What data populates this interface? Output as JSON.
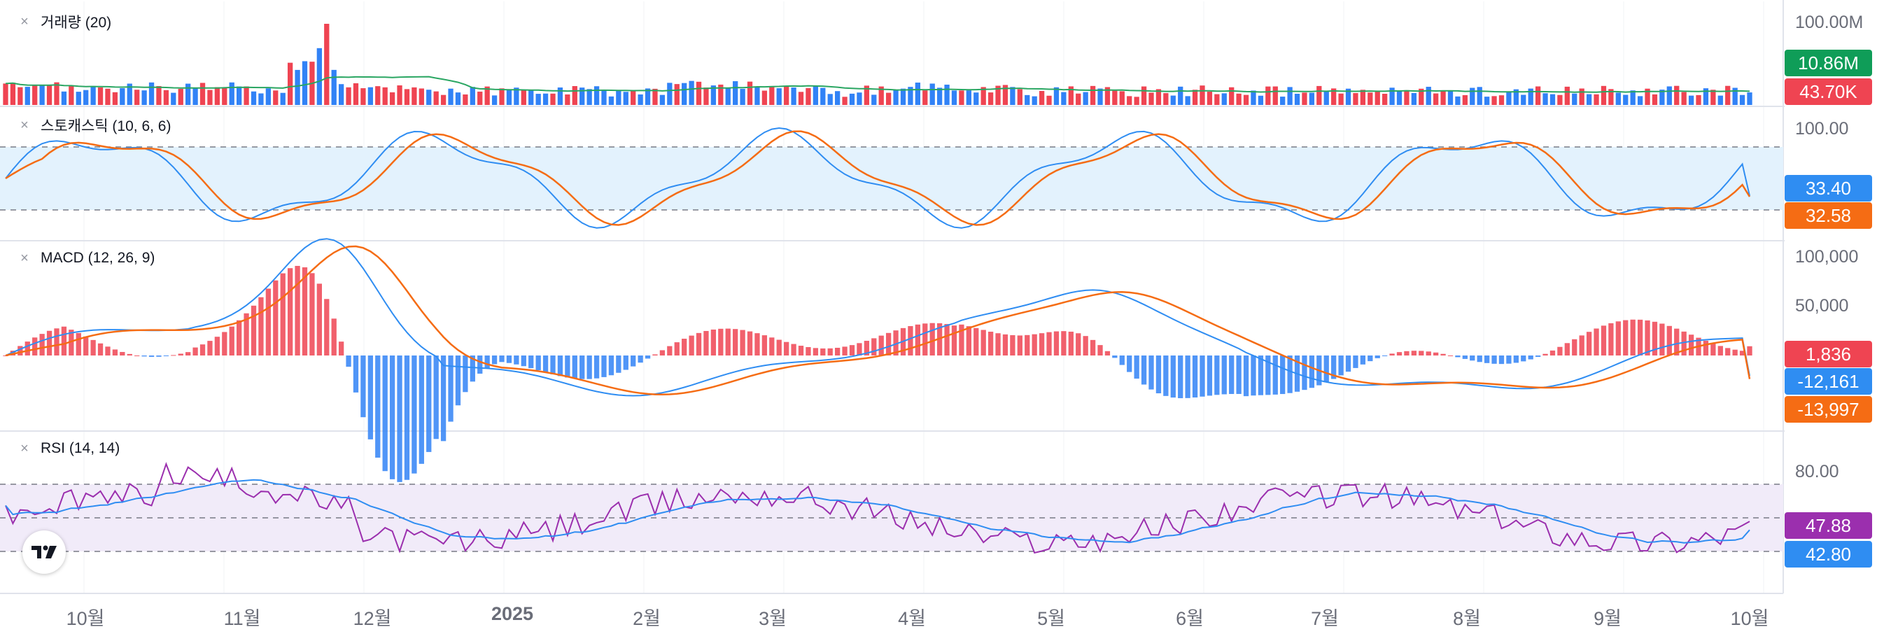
{
  "chart_data": [
    {
      "type": "bar",
      "title": "거래량 (20)",
      "series": [
        {
          "values": []
        },
        {
          "name": "MA",
          "values": []
        }
      ],
      "axis": {
        "max_label": "100.00M"
      },
      "last_values": {
        "ma": "10.86M",
        "volume": "43.70K"
      },
      "colors": {
        "up": "#ef4452",
        "down": "#3182f6",
        "ma": "#2aa662"
      }
    },
    {
      "type": "line",
      "title": "스토캐스틱 (10, 6, 6)",
      "series": [
        {
          "values": []
        },
        {
          "values": []
        }
      ],
      "axis": {
        "max_label": "100.00"
      },
      "bands": [
        80,
        20
      ],
      "last_values": {
        "k": "33.40",
        "d": "32.58"
      },
      "colors": {
        "k": "#2f8df2",
        "d": "#f56c14",
        "band_fill": "#e3f2fd"
      }
    },
    {
      "type": "line",
      "title": "MACD (12, 26, 9)",
      "series": [
        {
          "values": []
        },
        {
          "values": []
        },
        {
          "values": []
        }
      ],
      "axis": {
        "labels": [
          "100,000",
          "50,000"
        ]
      },
      "last_values": {
        "histogram": "1,836",
        "macd": "-12,161",
        "signal": "-13,997"
      },
      "colors": {
        "macd": "#2f8df2",
        "signal": "#f56c14",
        "hist_up": "#ef4452",
        "hist_down": "#3182f6"
      }
    },
    {
      "type": "line",
      "title": "RSI (14, 14)",
      "series": [
        {
          "values": []
        },
        {
          "values": []
        }
      ],
      "axis": {
        "max_label": "80.00"
      },
      "bands": [
        70,
        50,
        30
      ],
      "last_values": {
        "rsi": "47.88",
        "signal": "42.80"
      },
      "colors": {
        "rsi": "#9b2fae",
        "signal": "#2f8df2",
        "band_fill": "#f1ebf9"
      }
    }
  ],
  "time_axis": [
    {
      "label": "10월",
      "bold": false
    },
    {
      "label": "11월",
      "bold": false
    },
    {
      "label": "12월",
      "bold": false
    },
    {
      "label": "2025",
      "bold": true
    },
    {
      "label": "2월",
      "bold": false
    },
    {
      "label": "3월",
      "bold": false
    },
    {
      "label": "4월",
      "bold": false
    },
    {
      "label": "5월",
      "bold": false
    },
    {
      "label": "6월",
      "bold": false
    },
    {
      "label": "7월",
      "bold": false
    },
    {
      "label": "8월",
      "bold": false
    },
    {
      "label": "9월",
      "bold": false
    },
    {
      "label": "10월",
      "bold": false
    }
  ],
  "icons": {
    "close": "close-icon",
    "logo": "tradingview-logo-icon"
  },
  "close_glyph": "×",
  "logo_text": "TV"
}
